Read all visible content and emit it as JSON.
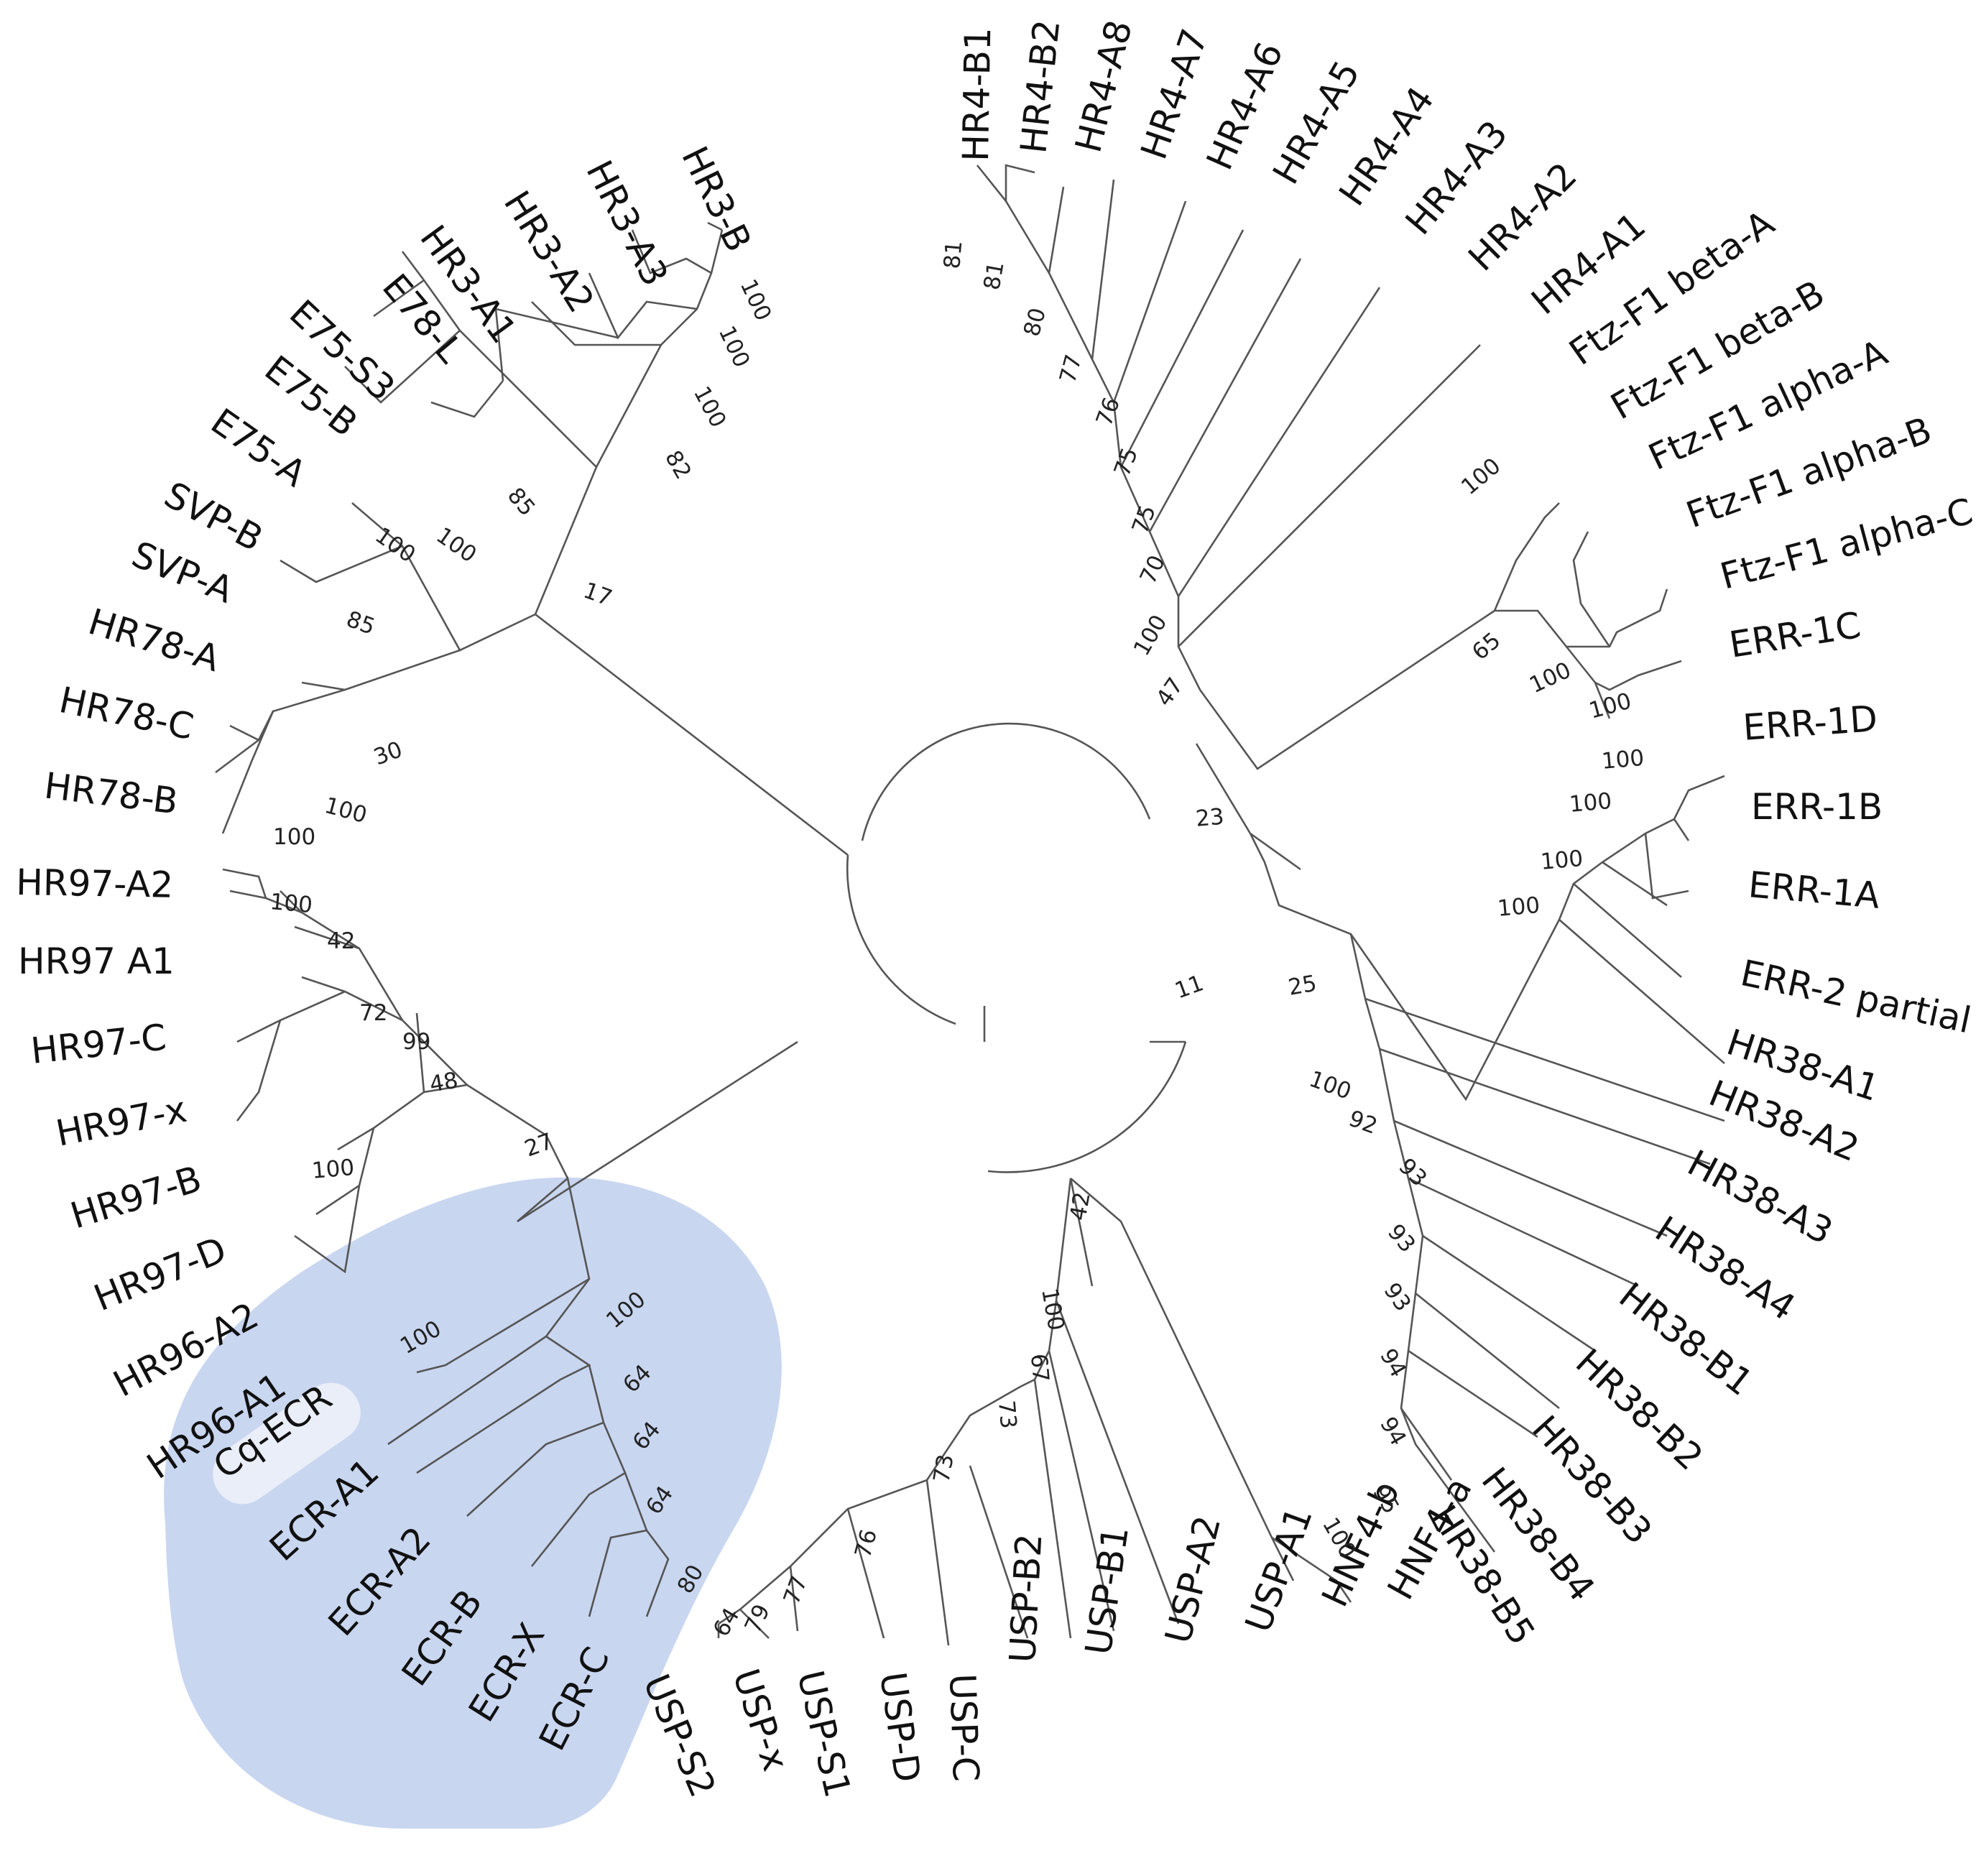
{
  "colors": {
    "highlight": "#c9d6f0",
    "highlight_label": "#e9eef8",
    "line": "#555555",
    "text": "#111111"
  },
  "leaves": {
    "HR3-B": "HR3-B",
    "HR3-A3": "HR3-A3",
    "HR3-A2": "HR3-A2",
    "HR3-A1": "HR3-A1",
    "E78-L": "E78-L",
    "E75-S3": "E75-S3",
    "E75-B": "E75-B",
    "E75-A": "E75-A",
    "SVP-B": "SVP-B",
    "SVP-A": "SVP-A",
    "HR78-A": "HR78-A",
    "HR78-C": "HR78-C",
    "HR78-B": "HR78-B",
    "HR97-A2": "HR97-A2",
    "HR97-A1": "HR97 A1",
    "HR97-C": "HR97-C",
    "HR97-x": "HR97-x",
    "HR97-B": "HR97-B",
    "HR97-D": "HR97-D",
    "HR96-A2": "HR96-A2",
    "HR96-A1": "HR96-A1",
    "Cq-ECR": "Cq-ECR",
    "ECR-A1": "ECR-A1",
    "ECR-A2": "ECR-A2",
    "ECR-B": "ECR-B",
    "ECR-X": "ECR-X",
    "ECR-C": "ECR-C",
    "USP-S2": "USP-S2",
    "USP-x": "USP-x",
    "USP-S1": "USP-S1",
    "USP-D": "USP-D",
    "USP-C": "USP-C",
    "USP-B2": "USP-B2",
    "USP-B1": "USP-B1",
    "USP-A2": "USP-A2",
    "USP-A1": "USP-A1",
    "HNF4-b": "HNF4-b",
    "HNF4-a": "HNF4-a",
    "HR38-B5": "HR38-B5",
    "HR38-B4": "HR38-B4",
    "HR38-B3": "HR38-B3",
    "HR38-B2": "HR38-B2",
    "HR38-B1": "HR38-B1",
    "HR38-A4": "HR38-A4",
    "HR38-A3": "HR38-A3",
    "HR38-A2": "HR38-A2",
    "HR38-A1": "HR38-A1",
    "ERR-2": "ERR-2 partial",
    "ERR-1A": "ERR-1A",
    "ERR-1B": "ERR-1B",
    "ERR-1D": "ERR-1D",
    "ERR-1C": "ERR-1C",
    "FTZ-aC": "Ftz-F1 alpha-C",
    "FTZ-aB": "Ftz-F1 alpha-B",
    "FTZ-aA": "Ftz-F1 alpha-A",
    "FTZ-bB": "Ftz-F1 beta-B",
    "FTZ-bA": "Ftz-F1 beta-A",
    "HR4-A1": "HR4-A1",
    "HR4-A2": "HR4-A2",
    "HR4-A3": "HR4-A3",
    "HR4-A4": "HR4-A4",
    "HR4-A5": "HR4-A5",
    "HR4-A6": "HR4-A6",
    "HR4-A7": "HR4-A7",
    "HR4-A8": "HR4-A8",
    "HR4-B2": "HR4-B2",
    "HR4-B1": "HR4-B1"
  },
  "bootstraps": {
    "hr3-top": "100",
    "hr3-a3": "100",
    "hr3-a2": "100",
    "hr3-a1": "82",
    "e78": "85",
    "e75-s3": "100",
    "e75-b": "100",
    "hr3-group": "17",
    "svp": "85",
    "svp-hr78": "30",
    "hr78-c": "100",
    "hr78-b": "100",
    "hr97-a": "100",
    "hr97-a-c": "42",
    "hr97-x": "72",
    "hr97-b": "99",
    "hr97-d": "100",
    "hr96": "48",
    "hr96-ecr": "27",
    "ecr": "100",
    "cq-ecr": "100",
    "ecr-a2": "64",
    "ecr-b": "64",
    "ecr-x": "64",
    "ecr-c": "80",
    "usp-s2": "64",
    "usp-x": "79",
    "usp-s1": "77",
    "usp-d": "76",
    "usp-c": "73",
    "usp-b": "73",
    "usp-b1": "67",
    "usp-a2": "100",
    "usp-hnf": "42",
    "hnf4": "100",
    "hr38-b5": "95",
    "hr38-b4": "94",
    "hr38-b3": "94",
    "hr38-b2": "93",
    "hr38-b1": "93",
    "hr38-a4": "93",
    "hr38-a3": "92",
    "hr38-a2": "100",
    "hr38-err": "25",
    "err-2": "100",
    "err-1a": "100",
    "err-1b": "100",
    "err-1d": "100",
    "ftz-c": "100",
    "ftz-b": "100",
    "ftz-a": "65",
    "ftz-beta": "100",
    "hr4-group": "47",
    "hr4-a1": "100",
    "hr4-a2": "70",
    "hr4-a3": "75",
    "hr4-a4": "75",
    "hr4-a5": "76",
    "hr4-a6": "77",
    "hr4-a7": "80",
    "hr4-a8": "81",
    "hr4-b": "81",
    "hr4-ftz-err": "23",
    "right-clade": "11"
  }
}
